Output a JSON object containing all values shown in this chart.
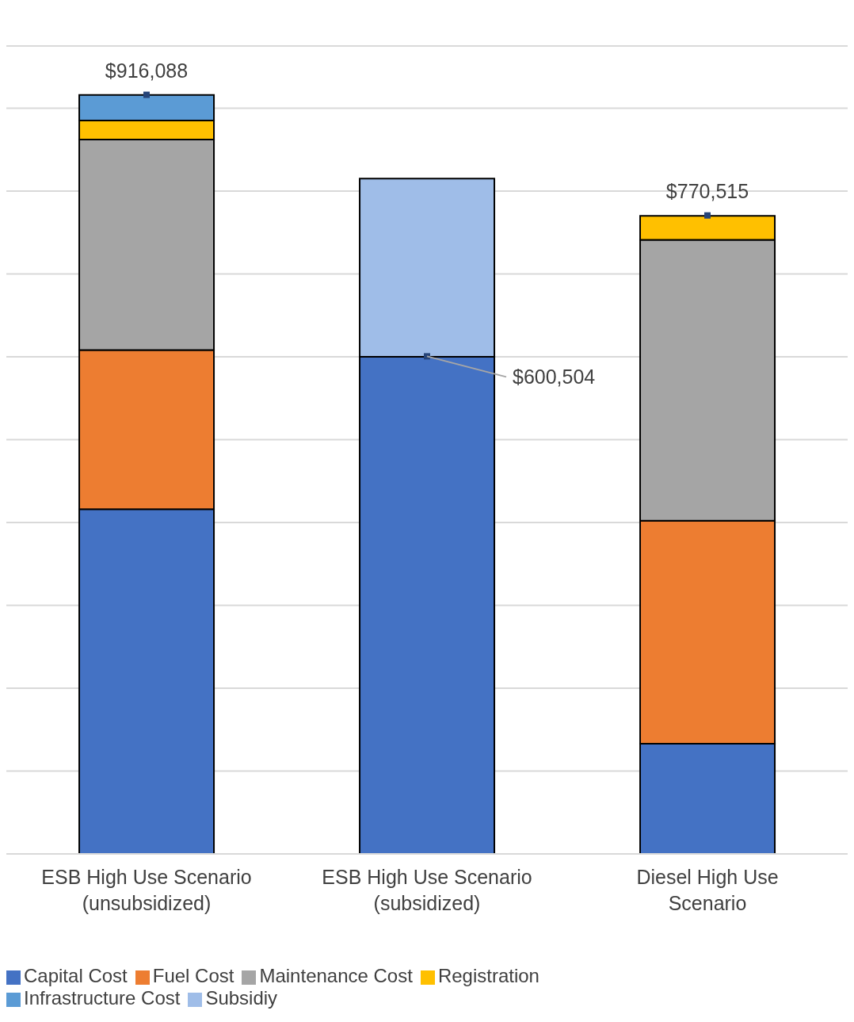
{
  "chart_data": {
    "type": "bar",
    "stacked": true,
    "categories": [
      "ESB High Use Scenario (unsubsidized)",
      "ESB High Use Scenario (subsidized)",
      "Diesel High Use Scenario"
    ],
    "series": [
      {
        "name": "Capital Cost",
        "color": "#4472c4",
        "values": [
          416000,
          600000,
          133000
        ]
      },
      {
        "name": "Fuel Cost",
        "color": "#ed7d31",
        "values": [
          192000,
          null,
          269000
        ]
      },
      {
        "name": "Maintenance Cost",
        "color": "#a5a5a5",
        "values": [
          254000,
          null,
          339000
        ]
      },
      {
        "name": "Registration",
        "color": "#ffc000",
        "values": [
          23000,
          null,
          29000
        ]
      },
      {
        "name": "Infrastructure Cost",
        "color": "#5b9bd5",
        "values": [
          31000,
          null,
          null
        ]
      },
      {
        "name": "Subsidiy",
        "color": "#9fbde8",
        "values": [
          null,
          215000,
          null
        ]
      },
      {
        "type": "scatter",
        "color": "#264478",
        "marker": "square",
        "x": [
          "ESB High Use Scenario (unsubsidized)",
          "ESB High Use Scenario (subsidized)",
          "Diesel High Use Scenario"
        ],
        "values": [
          916088,
          600504,
          770515
        ],
        "value_labels": [
          "$916,088",
          "$600,504",
          "$770,515"
        ]
      }
    ],
    "ylim": [
      0,
      975000
    ],
    "yticks": [
      {
        "value": 0,
        "label": null
      },
      {
        "value": 100000,
        "label": null
      },
      {
        "value": 200000,
        "label": null
      },
      {
        "value": 300000,
        "label": null
      },
      {
        "value": 400000,
        "label": null
      },
      {
        "value": 500000,
        "label": null
      },
      {
        "value": 600000,
        "label": null
      },
      {
        "value": 700000,
        "label": null
      },
      {
        "value": 800000,
        "label": null
      },
      {
        "value": 900000,
        "label": null
      }
    ],
    "tick_labels": "x",
    "grid": "y",
    "legend": "bottom left"
  }
}
